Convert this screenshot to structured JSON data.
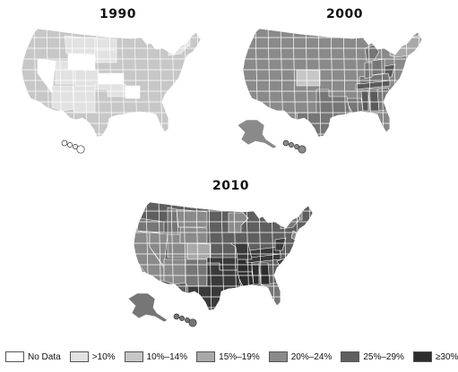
{
  "maps": [
    {
      "year": "1990",
      "base_color": "#c7c7c7",
      "alaska": "#ffffff",
      "hawaii": "#ffffff",
      "patches": [
        {
          "state": "Montana",
          "color": "#e2e2e2"
        },
        {
          "state": "Nevada",
          "color": "#ffffff"
        },
        {
          "state": "Wyoming",
          "color": "#ffffff"
        },
        {
          "state": "Utah",
          "color": "#e2e2e2"
        },
        {
          "state": "Kansas",
          "color": "#ffffff"
        },
        {
          "state": "Arkansas",
          "color": "#ffffff"
        },
        {
          "state": "North Dakota",
          "color": "#e2e2e2"
        },
        {
          "state": "South Dakota",
          "color": "#e2e2e2"
        },
        {
          "state": "Vermont",
          "color": "#e2e2e2"
        },
        {
          "state": "New York",
          "color": "#e2e2e2"
        },
        {
          "state": "New Mexico",
          "color": "#e2e2e2"
        },
        {
          "state": "Arizona",
          "color": "#e2e2e2"
        },
        {
          "state": "Colorado",
          "color": "#e2e2e2"
        },
        {
          "state": "Oklahoma",
          "color": "#e2e2e2"
        }
      ]
    },
    {
      "year": "2000",
      "base_color": "#8a8a8a",
      "alaska": "#8a8a8a",
      "hawaii": "#8a8a8a",
      "patches": [
        {
          "state": "Colorado",
          "color": "#c7c7c7"
        },
        {
          "state": "Northeast",
          "color": "#a9a9a9"
        },
        {
          "state": "Texas",
          "color": "#767676"
        },
        {
          "state": "Mississippi",
          "color": "#5a5a5a"
        },
        {
          "state": "Alabama",
          "color": "#5a5a5a"
        },
        {
          "state": "Tennessee",
          "color": "#5a5a5a"
        },
        {
          "state": "West Virginia",
          "color": "#5a5a5a"
        },
        {
          "state": "Louisiana",
          "color": "#767676"
        },
        {
          "state": "Kentucky",
          "color": "#767676"
        },
        {
          "state": "Indiana",
          "color": "#767676"
        },
        {
          "state": "Michigan",
          "color": "#767676"
        },
        {
          "state": "Ohio",
          "color": "#767676"
        },
        {
          "state": "Georgia",
          "color": "#767676"
        }
      ]
    },
    {
      "year": "2010",
      "base_color": "#5f5f5f",
      "alaska": "#767676",
      "hawaii": "#767676",
      "patches": [
        {
          "state": "California",
          "color": "#8a8a8a"
        },
        {
          "state": "Nevada",
          "color": "#8a8a8a"
        },
        {
          "state": "Arizona",
          "color": "#8a8a8a"
        },
        {
          "state": "Utah",
          "color": "#8a8a8a"
        },
        {
          "state": "Montana",
          "color": "#8a8a8a"
        },
        {
          "state": "Wyoming",
          "color": "#8a8a8a"
        },
        {
          "state": "Colorado",
          "color": "#a9a9a9"
        },
        {
          "state": "New Mexico",
          "color": "#767676"
        },
        {
          "state": "Oregon",
          "color": "#767676"
        },
        {
          "state": "Idaho",
          "color": "#767676"
        },
        {
          "state": "Minnesota",
          "color": "#8a8a8a"
        },
        {
          "state": "Vermont",
          "color": "#8a8a8a"
        },
        {
          "state": "New York",
          "color": "#767676"
        },
        {
          "state": "New Jersey",
          "color": "#8a8a8a"
        },
        {
          "state": "Florida",
          "color": "#767676"
        },
        {
          "state": "Texas",
          "color": "#3a3a3a"
        },
        {
          "state": "Oklahoma",
          "color": "#3a3a3a"
        },
        {
          "state": "Arkansas",
          "color": "#2d2d2d"
        },
        {
          "state": "Louisiana",
          "color": "#2d2d2d"
        },
        {
          "state": "Mississippi",
          "color": "#2d2d2d"
        },
        {
          "state": "Alabama",
          "color": "#2d2d2d"
        },
        {
          "state": "Tennessee",
          "color": "#3a3a3a"
        },
        {
          "state": "Kentucky",
          "color": "#3a3a3a"
        },
        {
          "state": "Missouri",
          "color": "#3a3a3a"
        },
        {
          "state": "West Virginia",
          "color": "#3a3a3a"
        },
        {
          "state": "South Carolina",
          "color": "#3a3a3a"
        }
      ]
    }
  ],
  "legend": [
    {
      "label": "No Data",
      "color": "#ffffff"
    },
    {
      "label": ">10%",
      "color": "#e2e2e2"
    },
    {
      "label": "10%–14%",
      "color": "#c7c7c7"
    },
    {
      "label": "15%–19%",
      "color": "#a9a9a9"
    },
    {
      "label": "20%–24%",
      "color": "#8a8a8a"
    },
    {
      "label": "25%–29%",
      "color": "#5f5f5f"
    },
    {
      "label": "≥30%",
      "color": "#2d2d2d"
    }
  ]
}
